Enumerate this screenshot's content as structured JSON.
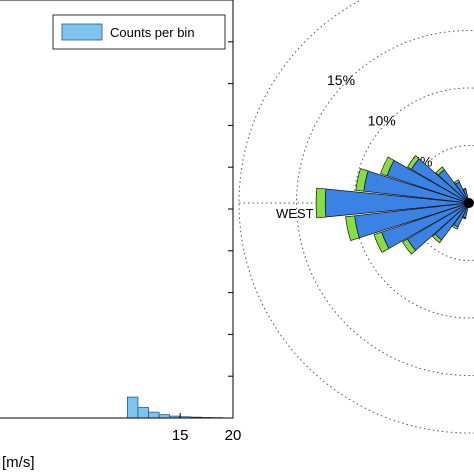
{
  "chart_data": [
    {
      "type": "bar",
      "legend": {
        "entries": [
          "Counts per bin"
        ],
        "placement": "top-right"
      },
      "x_tick_labels": [
        "15",
        "20"
      ],
      "x_ticks": [
        15,
        20
      ],
      "xlim": [
        -3,
        20
      ],
      "xlabel_visible": "[m/s]",
      "ylim": [
        0,
        100
      ],
      "bin_width": 1,
      "bins_x": [
        10,
        11,
        12,
        13,
        14,
        15,
        16,
        17,
        18
      ],
      "values": [
        5.0,
        2.5,
        1.4,
        0.8,
        0.45,
        0.3,
        0.2,
        0.12,
        0.08
      ],
      "bar_color": "#7fc4ef",
      "edge_color": "#1b5a8a"
    },
    {
      "type": "polar-bar",
      "ring_labels": [
        "5%",
        "10%",
        "15%"
      ],
      "ring_values": [
        5,
        10,
        15
      ],
      "direction_label": "WEST",
      "sectors": [
        {
          "angle_deg": 180,
          "value": 12.5,
          "tip": 0.8
        },
        {
          "angle_deg": 168,
          "value": 9.2,
          "tip": 0.7
        },
        {
          "angle_deg": 192,
          "value": 10.0,
          "tip": 0.8
        },
        {
          "angle_deg": 156,
          "value": 7.5,
          "tip": 0.6
        },
        {
          "angle_deg": 204,
          "value": 8.0,
          "tip": 0.7
        },
        {
          "angle_deg": 144,
          "value": 5.8,
          "tip": 0.4
        },
        {
          "angle_deg": 216,
          "value": 6.2,
          "tip": 0.5
        },
        {
          "angle_deg": 132,
          "value": 3.6,
          "tip": 0.3
        },
        {
          "angle_deg": 228,
          "value": 4.0,
          "tip": 0.3
        },
        {
          "angle_deg": 120,
          "value": 2.0,
          "tip": 0.2
        },
        {
          "angle_deg": 240,
          "value": 2.3,
          "tip": 0.2
        },
        {
          "angle_deg": 108,
          "value": 1.2,
          "tip": 0.1
        },
        {
          "angle_deg": 252,
          "value": 1.3,
          "tip": 0.1
        }
      ],
      "bar_color": "#3a82e4",
      "tip_color": "#88dd44"
    }
  ]
}
